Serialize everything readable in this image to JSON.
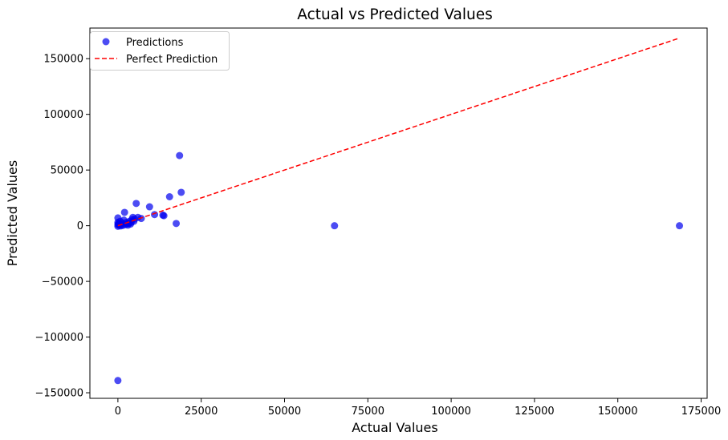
{
  "chart_data": {
    "type": "scatter",
    "title": "Actual vs Predicted Values",
    "xlabel": "Actual Values",
    "ylabel": "Predicted Values",
    "xlim": [
      -8400,
      176800
    ],
    "ylim": [
      -155000,
      177500
    ],
    "xticks": [
      0,
      25000,
      50000,
      75000,
      100000,
      125000,
      150000,
      175000
    ],
    "xtick_labels": [
      "0",
      "25000",
      "50000",
      "75000",
      "100000",
      "125000",
      "150000",
      "175000"
    ],
    "yticks": [
      -150000,
      -100000,
      -50000,
      0,
      50000,
      100000,
      150000
    ],
    "ytick_labels": [
      "−150000",
      "−100000",
      "−50000",
      "0",
      "50000",
      "100000",
      "150000"
    ],
    "grid": false,
    "legend_position": "top-left",
    "series": [
      {
        "name": "Predictions",
        "kind": "scatter",
        "color": "#0000ee",
        "opacity": 0.7,
        "points": [
          [
            0,
            -139000
          ],
          [
            0,
            7000
          ],
          [
            0,
            3000
          ],
          [
            0,
            1000
          ],
          [
            0,
            -500
          ],
          [
            200,
            2000
          ],
          [
            300,
            500
          ],
          [
            500,
            1500
          ],
          [
            700,
            4000
          ],
          [
            800,
            -200
          ],
          [
            1000,
            800
          ],
          [
            1200,
            2500
          ],
          [
            1500,
            300
          ],
          [
            1800,
            5000
          ],
          [
            2000,
            12000
          ],
          [
            2200,
            1000
          ],
          [
            2500,
            3000
          ],
          [
            2800,
            1800
          ],
          [
            3000,
            500
          ],
          [
            3200,
            2000
          ],
          [
            3500,
            4000
          ],
          [
            3800,
            1500
          ],
          [
            4000,
            3000
          ],
          [
            4200,
            5500
          ],
          [
            4500,
            7500
          ],
          [
            4800,
            4000
          ],
          [
            5000,
            6000
          ],
          [
            5500,
            20000
          ],
          [
            6000,
            7500
          ],
          [
            7000,
            6500
          ],
          [
            9500,
            17000
          ],
          [
            11000,
            10000
          ],
          [
            13500,
            9500
          ],
          [
            13800,
            9000
          ],
          [
            15500,
            26000
          ],
          [
            17500,
            2000
          ],
          [
            18500,
            63000
          ],
          [
            19000,
            30000
          ],
          [
            65000,
            0
          ],
          [
            168500,
            0
          ]
        ]
      },
      {
        "name": "Perfect Prediction",
        "kind": "line",
        "color": "#ff0000",
        "dash": "dashed",
        "points": [
          [
            0,
            0
          ],
          [
            168500,
            168500
          ]
        ]
      }
    ]
  }
}
